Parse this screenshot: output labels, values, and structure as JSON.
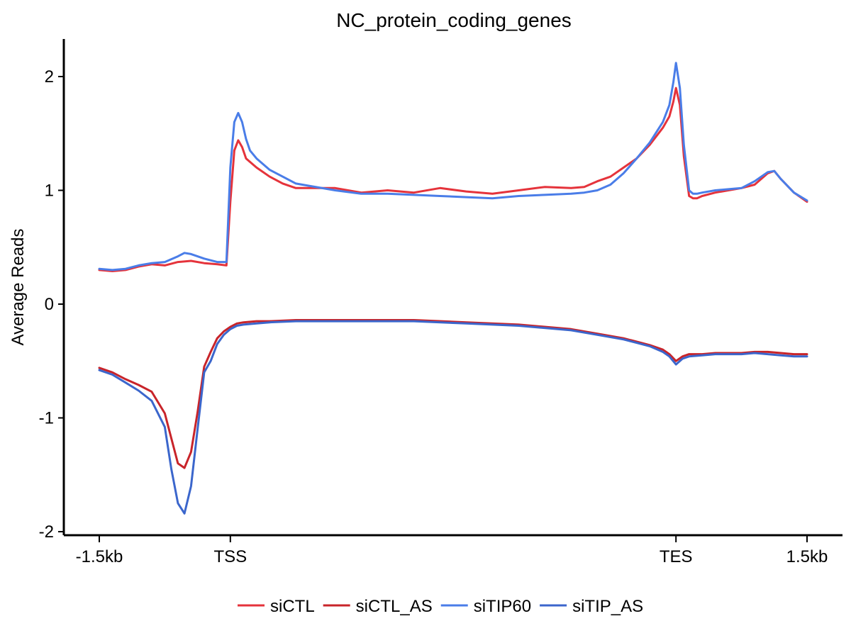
{
  "chart_data": {
    "type": "line",
    "title": "NC_protein_coding_genes",
    "xlabel": "",
    "ylabel": "Average Reads",
    "xlim": [
      0,
      5.4
    ],
    "ylim": [
      -2.05,
      2.3
    ],
    "x_ticks": [
      {
        "value": 0,
        "label": "-1.5kb"
      },
      {
        "value": 1,
        "label": "TSS"
      },
      {
        "value": 4.4,
        "label": "TES"
      },
      {
        "value": 5.4,
        "label": "1.5kb"
      }
    ],
    "y_ticks": [
      {
        "value": -2,
        "label": "-2"
      },
      {
        "value": -1,
        "label": "-1"
      },
      {
        "value": 0,
        "label": "0"
      },
      {
        "value": 1,
        "label": "1"
      },
      {
        "value": 2,
        "label": "2"
      }
    ],
    "legend_position": "bottom",
    "series": [
      {
        "name": "siCTL",
        "color": "#e5333b",
        "x": [
          0,
          0.1,
          0.2,
          0.3,
          0.4,
          0.5,
          0.6,
          0.7,
          0.8,
          0.9,
          0.97,
          1.0,
          1.03,
          1.06,
          1.09,
          1.12,
          1.15,
          1.2,
          1.3,
          1.4,
          1.5,
          1.6,
          1.8,
          2.0,
          2.2,
          2.4,
          2.6,
          2.8,
          3.0,
          3.2,
          3.4,
          3.6,
          3.7,
          3.8,
          3.9,
          4.0,
          4.1,
          4.2,
          4.3,
          4.35,
          4.38,
          4.4,
          4.43,
          4.46,
          4.5,
          4.53,
          4.56,
          4.6,
          4.7,
          4.8,
          4.9,
          5.0,
          5.1,
          5.15,
          5.2,
          5.3,
          5.4
        ],
        "values": [
          0.3,
          0.29,
          0.3,
          0.33,
          0.35,
          0.34,
          0.37,
          0.38,
          0.36,
          0.35,
          0.34,
          0.9,
          1.35,
          1.44,
          1.38,
          1.28,
          1.25,
          1.2,
          1.12,
          1.06,
          1.02,
          1.02,
          1.02,
          0.98,
          1.0,
          0.98,
          1.02,
          0.99,
          0.97,
          1.0,
          1.03,
          1.02,
          1.03,
          1.08,
          1.12,
          1.2,
          1.28,
          1.4,
          1.55,
          1.65,
          1.78,
          1.9,
          1.75,
          1.3,
          0.95,
          0.93,
          0.93,
          0.95,
          0.98,
          1.0,
          1.02,
          1.05,
          1.15,
          1.17,
          1.1,
          0.98,
          0.9
        ]
      },
      {
        "name": "siCTL_AS",
        "color": "#c8242a",
        "x": [
          0,
          0.1,
          0.2,
          0.3,
          0.4,
          0.5,
          0.55,
          0.6,
          0.65,
          0.7,
          0.75,
          0.8,
          0.85,
          0.9,
          0.95,
          1.0,
          1.05,
          1.1,
          1.2,
          1.3,
          1.5,
          1.8,
          2.0,
          2.4,
          2.8,
          3.2,
          3.6,
          3.8,
          4.0,
          4.1,
          4.2,
          4.3,
          4.35,
          4.4,
          4.45,
          4.5,
          4.6,
          4.7,
          4.9,
          5.0,
          5.1,
          5.2,
          5.3,
          5.4
        ],
        "values": [
          -0.56,
          -0.6,
          -0.66,
          -0.71,
          -0.77,
          -0.96,
          -1.18,
          -1.4,
          -1.44,
          -1.3,
          -0.95,
          -0.55,
          -0.42,
          -0.3,
          -0.24,
          -0.2,
          -0.17,
          -0.16,
          -0.15,
          -0.15,
          -0.14,
          -0.14,
          -0.14,
          -0.14,
          -0.16,
          -0.18,
          -0.22,
          -0.26,
          -0.3,
          -0.33,
          -0.36,
          -0.4,
          -0.44,
          -0.5,
          -0.46,
          -0.44,
          -0.44,
          -0.43,
          -0.43,
          -0.42,
          -0.42,
          -0.43,
          -0.44,
          -0.44
        ]
      },
      {
        "name": "siTIP60",
        "color": "#4a7de8",
        "x": [
          0,
          0.1,
          0.2,
          0.3,
          0.4,
          0.5,
          0.6,
          0.65,
          0.7,
          0.8,
          0.9,
          0.97,
          1.0,
          1.03,
          1.06,
          1.09,
          1.12,
          1.15,
          1.2,
          1.3,
          1.4,
          1.5,
          1.6,
          1.8,
          2.0,
          2.2,
          2.4,
          2.6,
          2.8,
          3.0,
          3.2,
          3.4,
          3.6,
          3.7,
          3.8,
          3.9,
          4.0,
          4.1,
          4.2,
          4.3,
          4.35,
          4.38,
          4.4,
          4.43,
          4.46,
          4.5,
          4.53,
          4.56,
          4.6,
          4.7,
          4.8,
          4.9,
          5.0,
          5.1,
          5.15,
          5.2,
          5.3,
          5.4
        ],
        "values": [
          0.31,
          0.3,
          0.31,
          0.34,
          0.36,
          0.37,
          0.42,
          0.45,
          0.44,
          0.4,
          0.37,
          0.37,
          1.2,
          1.6,
          1.68,
          1.6,
          1.45,
          1.35,
          1.28,
          1.18,
          1.12,
          1.06,
          1.04,
          1.0,
          0.97,
          0.97,
          0.96,
          0.95,
          0.94,
          0.93,
          0.95,
          0.96,
          0.97,
          0.98,
          1.0,
          1.05,
          1.15,
          1.28,
          1.42,
          1.6,
          1.75,
          1.95,
          2.12,
          1.9,
          1.4,
          1.0,
          0.97,
          0.97,
          0.98,
          1.0,
          1.01,
          1.02,
          1.08,
          1.16,
          1.17,
          1.1,
          0.98,
          0.91
        ]
      },
      {
        "name": "siTIP_AS",
        "color": "#3b66cc",
        "x": [
          0,
          0.1,
          0.2,
          0.3,
          0.4,
          0.5,
          0.55,
          0.6,
          0.65,
          0.7,
          0.75,
          0.8,
          0.85,
          0.9,
          0.95,
          1.0,
          1.05,
          1.1,
          1.2,
          1.3,
          1.5,
          1.8,
          2.0,
          2.4,
          2.8,
          3.2,
          3.6,
          3.8,
          4.0,
          4.1,
          4.2,
          4.3,
          4.35,
          4.4,
          4.45,
          4.5,
          4.6,
          4.7,
          4.9,
          5.0,
          5.1,
          5.2,
          5.3,
          5.4
        ],
        "values": [
          -0.58,
          -0.62,
          -0.69,
          -0.76,
          -0.85,
          -1.08,
          -1.45,
          -1.75,
          -1.84,
          -1.6,
          -1.1,
          -0.6,
          -0.5,
          -0.35,
          -0.27,
          -0.22,
          -0.19,
          -0.18,
          -0.17,
          -0.16,
          -0.15,
          -0.15,
          -0.15,
          -0.15,
          -0.17,
          -0.19,
          -0.23,
          -0.27,
          -0.31,
          -0.34,
          -0.37,
          -0.42,
          -0.46,
          -0.53,
          -0.48,
          -0.46,
          -0.45,
          -0.44,
          -0.44,
          -0.43,
          -0.44,
          -0.45,
          -0.46,
          -0.46
        ]
      }
    ]
  }
}
